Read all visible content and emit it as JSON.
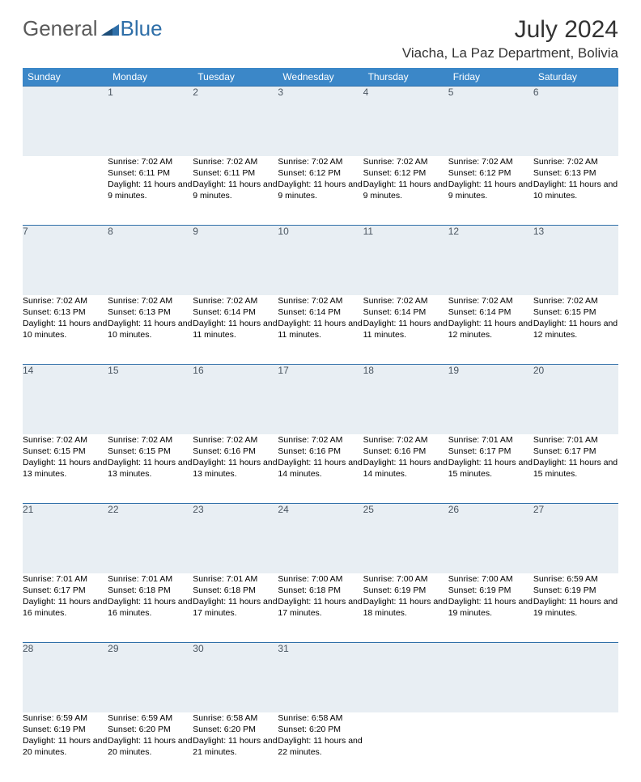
{
  "logo": {
    "general": "General",
    "blue": "Blue"
  },
  "title": "July 2024",
  "location": "Viacha, La Paz Department, Bolivia",
  "weekdays": [
    "Sunday",
    "Monday",
    "Tuesday",
    "Wednesday",
    "Thursday",
    "Friday",
    "Saturday"
  ],
  "colors": {
    "header_bg": "#3b87c8",
    "header_text": "#ffffff",
    "daynum_bg": "#e8eef3",
    "daynum_text": "#4a5560",
    "border": "#2f6fa8",
    "body_text": "#000000",
    "logo_gray": "#5a5a5a",
    "logo_blue": "#2f6fa8"
  },
  "weeks": [
    [
      null,
      {
        "n": "1",
        "sr": "7:02 AM",
        "ss": "6:11 PM",
        "dl": "11 hours and 9 minutes."
      },
      {
        "n": "2",
        "sr": "7:02 AM",
        "ss": "6:11 PM",
        "dl": "11 hours and 9 minutes."
      },
      {
        "n": "3",
        "sr": "7:02 AM",
        "ss": "6:12 PM",
        "dl": "11 hours and 9 minutes."
      },
      {
        "n": "4",
        "sr": "7:02 AM",
        "ss": "6:12 PM",
        "dl": "11 hours and 9 minutes."
      },
      {
        "n": "5",
        "sr": "7:02 AM",
        "ss": "6:12 PM",
        "dl": "11 hours and 9 minutes."
      },
      {
        "n": "6",
        "sr": "7:02 AM",
        "ss": "6:13 PM",
        "dl": "11 hours and 10 minutes."
      }
    ],
    [
      {
        "n": "7",
        "sr": "7:02 AM",
        "ss": "6:13 PM",
        "dl": "11 hours and 10 minutes."
      },
      {
        "n": "8",
        "sr": "7:02 AM",
        "ss": "6:13 PM",
        "dl": "11 hours and 10 minutes."
      },
      {
        "n": "9",
        "sr": "7:02 AM",
        "ss": "6:14 PM",
        "dl": "11 hours and 11 minutes."
      },
      {
        "n": "10",
        "sr": "7:02 AM",
        "ss": "6:14 PM",
        "dl": "11 hours and 11 minutes."
      },
      {
        "n": "11",
        "sr": "7:02 AM",
        "ss": "6:14 PM",
        "dl": "11 hours and 11 minutes."
      },
      {
        "n": "12",
        "sr": "7:02 AM",
        "ss": "6:14 PM",
        "dl": "11 hours and 12 minutes."
      },
      {
        "n": "13",
        "sr": "7:02 AM",
        "ss": "6:15 PM",
        "dl": "11 hours and 12 minutes."
      }
    ],
    [
      {
        "n": "14",
        "sr": "7:02 AM",
        "ss": "6:15 PM",
        "dl": "11 hours and 13 minutes."
      },
      {
        "n": "15",
        "sr": "7:02 AM",
        "ss": "6:15 PM",
        "dl": "11 hours and 13 minutes."
      },
      {
        "n": "16",
        "sr": "7:02 AM",
        "ss": "6:16 PM",
        "dl": "11 hours and 13 minutes."
      },
      {
        "n": "17",
        "sr": "7:02 AM",
        "ss": "6:16 PM",
        "dl": "11 hours and 14 minutes."
      },
      {
        "n": "18",
        "sr": "7:02 AM",
        "ss": "6:16 PM",
        "dl": "11 hours and 14 minutes."
      },
      {
        "n": "19",
        "sr": "7:01 AM",
        "ss": "6:17 PM",
        "dl": "11 hours and 15 minutes."
      },
      {
        "n": "20",
        "sr": "7:01 AM",
        "ss": "6:17 PM",
        "dl": "11 hours and 15 minutes."
      }
    ],
    [
      {
        "n": "21",
        "sr": "7:01 AM",
        "ss": "6:17 PM",
        "dl": "11 hours and 16 minutes."
      },
      {
        "n": "22",
        "sr": "7:01 AM",
        "ss": "6:18 PM",
        "dl": "11 hours and 16 minutes."
      },
      {
        "n": "23",
        "sr": "7:01 AM",
        "ss": "6:18 PM",
        "dl": "11 hours and 17 minutes."
      },
      {
        "n": "24",
        "sr": "7:00 AM",
        "ss": "6:18 PM",
        "dl": "11 hours and 17 minutes."
      },
      {
        "n": "25",
        "sr": "7:00 AM",
        "ss": "6:19 PM",
        "dl": "11 hours and 18 minutes."
      },
      {
        "n": "26",
        "sr": "7:00 AM",
        "ss": "6:19 PM",
        "dl": "11 hours and 19 minutes."
      },
      {
        "n": "27",
        "sr": "6:59 AM",
        "ss": "6:19 PM",
        "dl": "11 hours and 19 minutes."
      }
    ],
    [
      {
        "n": "28",
        "sr": "6:59 AM",
        "ss": "6:19 PM",
        "dl": "11 hours and 20 minutes."
      },
      {
        "n": "29",
        "sr": "6:59 AM",
        "ss": "6:20 PM",
        "dl": "11 hours and 20 minutes."
      },
      {
        "n": "30",
        "sr": "6:58 AM",
        "ss": "6:20 PM",
        "dl": "11 hours and 21 minutes."
      },
      {
        "n": "31",
        "sr": "6:58 AM",
        "ss": "6:20 PM",
        "dl": "11 hours and 22 minutes."
      },
      null,
      null,
      null
    ]
  ],
  "labels": {
    "sunrise": "Sunrise:",
    "sunset": "Sunset:",
    "daylight": "Daylight:"
  }
}
